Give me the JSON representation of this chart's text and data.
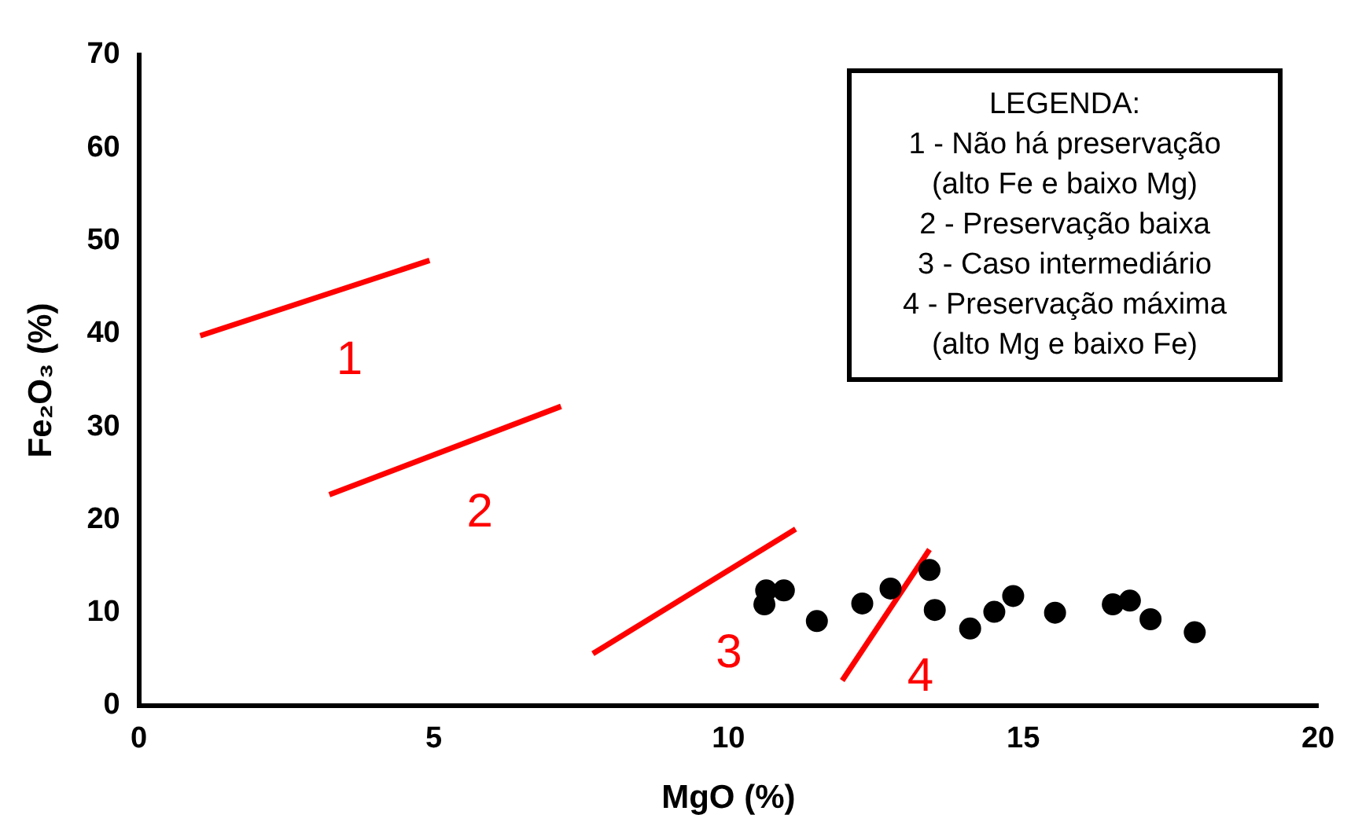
{
  "chart_data": {
    "type": "scatter",
    "xlabel": "MgO (%)",
    "ylabel": "Fe₂O₃ (%)",
    "xlim": [
      0,
      20
    ],
    "xticks": [
      0,
      5,
      10,
      15,
      20
    ],
    "ylim": [
      0,
      70
    ],
    "yticks": [
      0,
      10,
      20,
      30,
      40,
      50,
      60,
      70
    ],
    "grid": false,
    "legend": false,
    "marker": "circle",
    "series": [
      {
        "color": "#000000",
        "x": [
          10.61,
          10.64,
          10.94,
          11.5,
          12.27,
          12.75,
          13.41,
          13.5,
          14.1,
          14.51,
          14.83,
          15.54,
          16.52,
          16.81,
          17.16,
          17.91
        ],
        "values": [
          10.9,
          12.4,
          12.4,
          9.1,
          11.0,
          12.6,
          14.6,
          10.3,
          8.3,
          10.1,
          11.8,
          10.0,
          10.9,
          11.3,
          9.3,
          7.9
        ]
      },
      {
        "type": "line",
        "name": "1",
        "color": "#ff0000",
        "marker": "none",
        "x": [
          1.04,
          4.93
        ],
        "values": [
          39.8,
          47.9
        ]
      },
      {
        "type": "line",
        "name": "2",
        "color": "#ff0000",
        "marker": "none",
        "x": [
          3.23,
          7.16
        ],
        "values": [
          22.7,
          32.2
        ]
      },
      {
        "type": "line",
        "name": "3",
        "color": "#ff0000",
        "marker": "none",
        "x": [
          7.7,
          11.14
        ],
        "values": [
          5.6,
          19.0
        ]
      },
      {
        "type": "line",
        "name": "4",
        "color": "#ff0000",
        "marker": "none",
        "x": [
          11.93,
          13.41
        ],
        "values": [
          2.7,
          16.8
        ]
      }
    ],
    "annotations": [
      "LEGENDA:",
      "1 - Não há preservação",
      "(alto Fe e baixo Mg)",
      "2 - Preservação baixa",
      "3 - Caso intermediário",
      "4 - Preservação máxima",
      "(alto Mg e baixo Fe)"
    ]
  }
}
